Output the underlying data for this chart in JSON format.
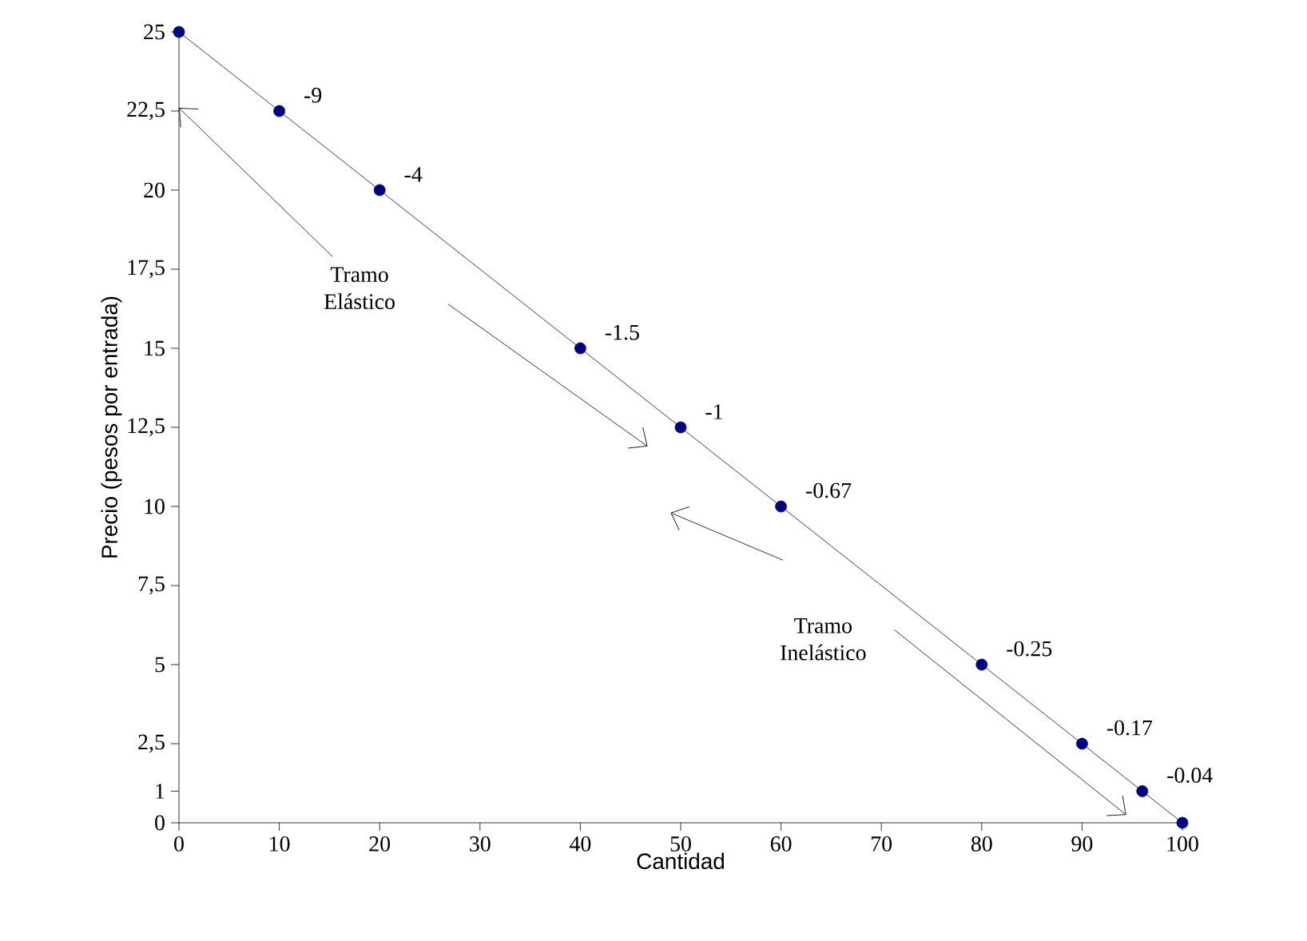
{
  "chart_data": {
    "type": "line",
    "xlabel": "Cantidad",
    "ylabel": "Precio (pesos por entrada)",
    "x": [
      0,
      10,
      20,
      40,
      50,
      60,
      80,
      90,
      96,
      100
    ],
    "series": [
      {
        "color": "#000080",
        "values": [
          25,
          22.5,
          20,
          15,
          12.5,
          10,
          5,
          2.5,
          1,
          0
        ]
      }
    ],
    "marker": "circle",
    "line_style": "solid",
    "xlim": [
      0,
      100
    ],
    "xticks": [
      0,
      10,
      20,
      30,
      40,
      50,
      60,
      70,
      80,
      90,
      100
    ],
    "ylim": [
      0,
      25
    ],
    "yticks": [
      0,
      {
        "value": 1,
        "label": "1"
      },
      {
        "value": 2.5,
        "label": "2,5"
      },
      5,
      {
        "value": 7.5,
        "label": "7,5"
      },
      10,
      {
        "value": 12.5,
        "label": "12,5"
      },
      15,
      {
        "value": 17.5,
        "label": "17,5"
      },
      20,
      {
        "value": 22.5,
        "label": "22,5"
      },
      25
    ],
    "annotations": [
      "Tramo Elástico",
      "Tramo Inelástico",
      {
        "text": "-9",
        "x": 10,
        "y": 22.5
      },
      {
        "text": "-4",
        "x": 20,
        "y": 20
      },
      {
        "text": "-1.5",
        "x": 40,
        "y": 15
      },
      {
        "text": "-1",
        "x": 50,
        "y": 12.5
      },
      {
        "text": "-0.67",
        "x": 60,
        "y": 10
      },
      {
        "text": "-0.25",
        "x": 80,
        "y": 5
      },
      {
        "text": "-0.17",
        "x": 90,
        "y": 2.5
      },
      {
        "text": "-0.04",
        "x": 96,
        "y": 1
      }
    ]
  }
}
